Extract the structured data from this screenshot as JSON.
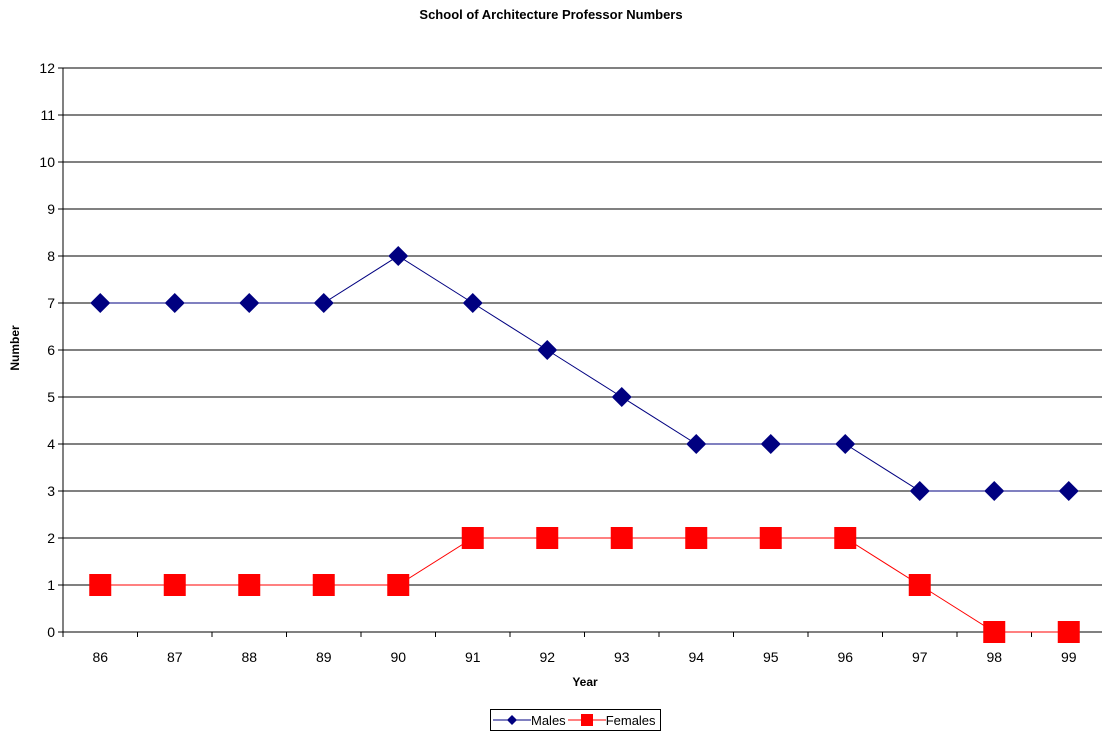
{
  "chart_data": {
    "type": "line",
    "title": "School of Architecture Professor Numbers",
    "xlabel": "Year",
    "ylabel": "Number",
    "categories": [
      "86",
      "87",
      "88",
      "89",
      "90",
      "91",
      "92",
      "93",
      "94",
      "95",
      "96",
      "97",
      "98",
      "99"
    ],
    "ylim": [
      0,
      12
    ],
    "yticks": [
      0,
      1,
      2,
      3,
      4,
      5,
      6,
      7,
      8,
      9,
      10,
      11,
      12
    ],
    "grid": "horizontal",
    "legend_position": "bottom",
    "series": [
      {
        "name": "Males",
        "values": [
          7,
          7,
          7,
          7,
          8,
          7,
          6,
          5,
          4,
          4,
          4,
          3,
          3,
          3
        ],
        "color": "#000080",
        "marker": "diamond"
      },
      {
        "name": "Females",
        "values": [
          1,
          1,
          1,
          1,
          1,
          2,
          2,
          2,
          2,
          2,
          2,
          1,
          0,
          0
        ],
        "color": "#ff0000",
        "marker": "square"
      }
    ]
  }
}
